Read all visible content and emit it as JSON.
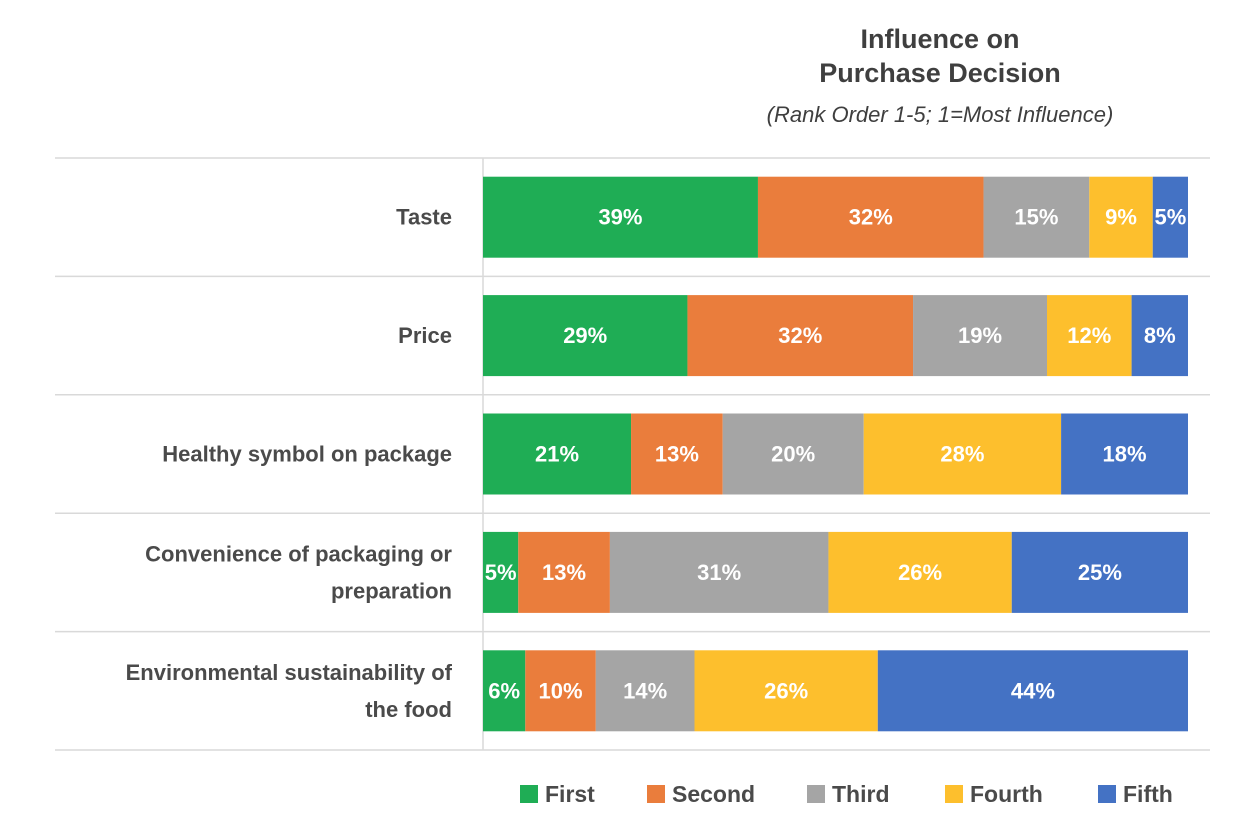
{
  "chart_data": {
    "type": "bar",
    "orientation": "horizontal",
    "stacked": true,
    "title": "Influence on Purchase Decision",
    "title_lines": [
      "Influence on",
      "Purchase Decision"
    ],
    "subtitle": "(Rank Order 1-5; 1=Most Influence)",
    "categories": [
      "Taste",
      "Price",
      "Healthy symbol on package",
      "Convenience of packaging or preparation",
      "Environmental sustainability of the food"
    ],
    "category_lines": [
      [
        "Taste"
      ],
      [
        "Price"
      ],
      [
        "Healthy symbol on package"
      ],
      [
        "Convenience of packaging or",
        "preparation"
      ],
      [
        "Environmental sustainability of",
        "the food"
      ]
    ],
    "series": [
      {
        "name": "First",
        "color": "#1fad55",
        "values": [
          39,
          29,
          21,
          5,
          6
        ]
      },
      {
        "name": "Second",
        "color": "#ea7d3c",
        "values": [
          32,
          32,
          13,
          13,
          10
        ]
      },
      {
        "name": "Third",
        "color": "#a5a5a5",
        "values": [
          15,
          19,
          20,
          31,
          14
        ]
      },
      {
        "name": "Fourth",
        "color": "#fdbf2d",
        "values": [
          9,
          12,
          28,
          26,
          26
        ]
      },
      {
        "name": "Fifth",
        "color": "#4472c4",
        "values": [
          5,
          8,
          18,
          25,
          44
        ]
      }
    ],
    "value_suffix": "%",
    "xlim": [
      0,
      100
    ],
    "grid": false,
    "legend_position": "bottom"
  }
}
